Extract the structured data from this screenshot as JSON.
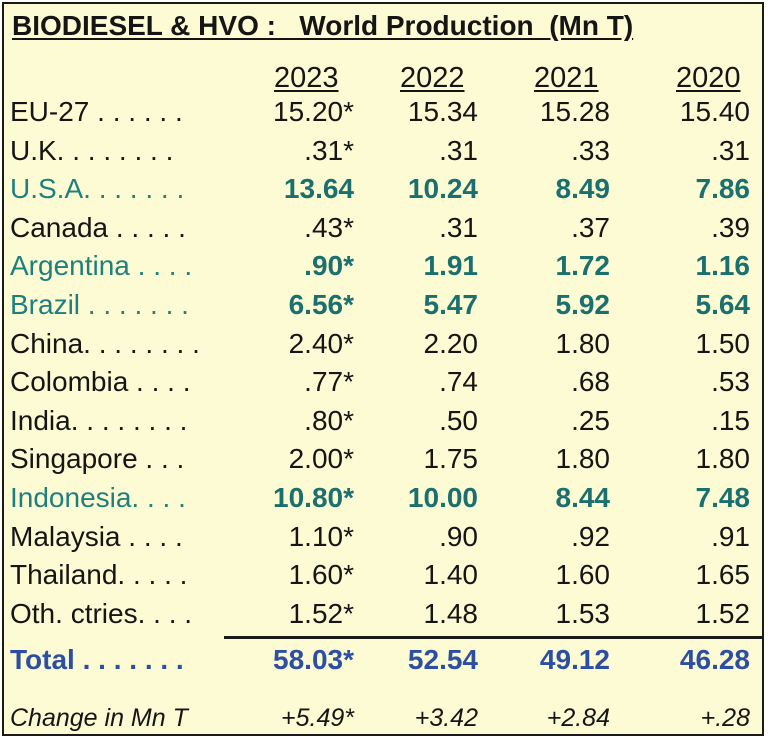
{
  "title": "BIODIESEL & HVO :   World Production  (Mn T)",
  "years": [
    "2023",
    "2022",
    "2021",
    "2020"
  ],
  "rows": [
    {
      "label": "EU-27 . . . . . .",
      "values": [
        "15.20*",
        "15.34",
        "15.28",
        "15.40"
      ],
      "highlight": false
    },
    {
      "label": "U.K. . . . . . . .",
      "values": [
        ".31*",
        ".31",
        ".33",
        ".31"
      ],
      "highlight": false
    },
    {
      "label": "U.S.A. . . . . . .",
      "values": [
        "13.64",
        "10.24",
        "8.49",
        "7.86"
      ],
      "highlight": true
    },
    {
      "label": "Canada . . . . .",
      "values": [
        ".43*",
        ".31",
        ".37",
        ".39"
      ],
      "highlight": false
    },
    {
      "label": "Argentina . . . .",
      "values": [
        ".90*",
        "1.91",
        "1.72",
        "1.16"
      ],
      "highlight": true
    },
    {
      "label": "Brazil . . . . . . .",
      "values": [
        "6.56*",
        "5.47",
        "5.92",
        "5.64"
      ],
      "highlight": true
    },
    {
      "label": "China. . . . . . . .",
      "values": [
        "2.40*",
        "2.20",
        "1.80",
        "1.50"
      ],
      "highlight": false
    },
    {
      "label": "Colombia . . . .",
      "values": [
        ".77*",
        ".74",
        ".68",
        ".53"
      ],
      "highlight": false
    },
    {
      "label": "India. . . . . . . .",
      "values": [
        ".80*",
        ".50",
        ".25",
        ".15"
      ],
      "highlight": false
    },
    {
      "label": "Singapore . . .",
      "values": [
        "2.00*",
        "1.75",
        "1.80",
        "1.80"
      ],
      "highlight": false
    },
    {
      "label": "Indonesia. . . .",
      "values": [
        "10.80*",
        "10.00",
        "8.44",
        "7.48"
      ],
      "highlight": true
    },
    {
      "label": "Malaysia . . . .",
      "values": [
        "1.10*",
        ".90",
        ".92",
        ".91"
      ],
      "highlight": false
    },
    {
      "label": "Thailand. . . . .",
      "values": [
        "1.60*",
        "1.40",
        "1.60",
        "1.65"
      ],
      "highlight": false
    },
    {
      "label": "Oth. ctries. . . .",
      "values": [
        "1.52*",
        "1.48",
        "1.53",
        "1.52"
      ],
      "highlight": false
    }
  ],
  "total": {
    "label": "Total . . . . . . .",
    "values": [
      "58.03*",
      "52.54",
      "49.12",
      "46.28"
    ]
  },
  "change": {
    "label": "Change in Mn T",
    "values": [
      "+5.49*",
      "+3.42",
      "+2.84",
      "+.28"
    ]
  },
  "colors": {
    "background": "#fdfbd3",
    "highlight": "#1a6f6f",
    "total": "#2d4fa3"
  }
}
